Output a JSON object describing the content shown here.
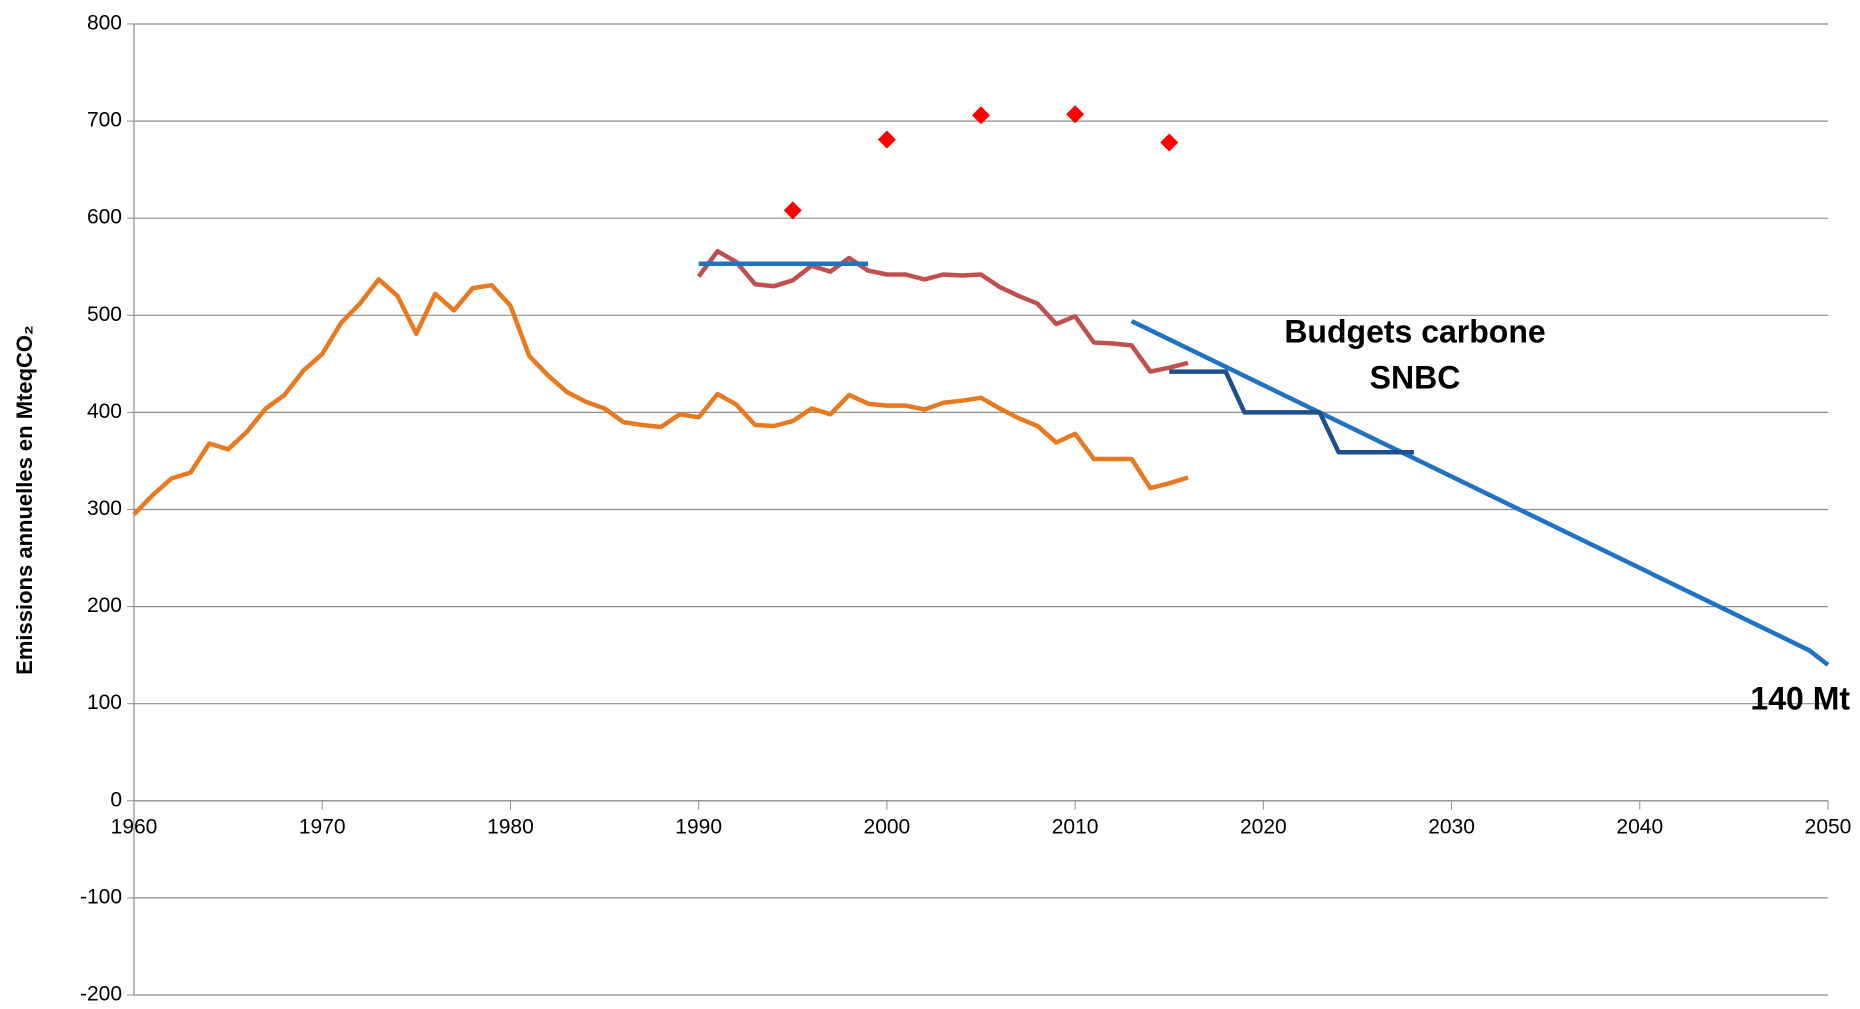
{
  "chart_data": {
    "type": "line",
    "y_label": "Emissions annuelles en MteqCO₂",
    "annotations": [
      "Budgets carbone",
      "SNBC",
      "140 Mt"
    ],
    "xlim": [
      1960,
      2050
    ],
    "xticks": [
      1960,
      1970,
      1980,
      1990,
      2000,
      2010,
      2020,
      2030,
      2040,
      2050
    ],
    "ylim": [
      -200,
      800
    ],
    "yticks": [
      -200,
      -100,
      0,
      100,
      200,
      300,
      400,
      500,
      600,
      700,
      800
    ],
    "grid": true,
    "series": [
      {
        "type": "line",
        "color": "#e8791f",
        "x": [
          1960,
          1961,
          1962,
          1963,
          1964,
          1965,
          1966,
          1967,
          1968,
          1969,
          1970,
          1971,
          1972,
          1973,
          1974,
          1975,
          1976,
          1977,
          1978,
          1979,
          1980,
          1981,
          1982,
          1983,
          1984,
          1985,
          1986,
          1987,
          1988,
          1989,
          1990,
          1991,
          1992,
          1993,
          1994,
          1995,
          1996,
          1997,
          1998,
          1999,
          2000,
          2001,
          2002,
          2003,
          2004,
          2005,
          2006,
          2007,
          2008,
          2009,
          2010,
          2011,
          2012,
          2013,
          2014,
          2015,
          2016
        ],
        "values": [
          295,
          315,
          332,
          338,
          368,
          362,
          380,
          404,
          418,
          443,
          460,
          492,
          512,
          537,
          520,
          481,
          522,
          505,
          528,
          531,
          510,
          458,
          438,
          421,
          411,
          404,
          390,
          387,
          385,
          398,
          395,
          419,
          408,
          387,
          386,
          391,
          404,
          398,
          418,
          409,
          407,
          407,
          403,
          410,
          412,
          415,
          404,
          394,
          386,
          369,
          378,
          352,
          352,
          352,
          322,
          327,
          333
        ]
      },
      {
        "type": "line",
        "color": "#c0504d",
        "x": [
          1990,
          1991,
          1992,
          1993,
          1994,
          1995,
          1996,
          1997,
          1998,
          1999,
          2000,
          2001,
          2002,
          2003,
          2004,
          2005,
          2006,
          2007,
          2008,
          2009,
          2010,
          2011,
          2012,
          2013,
          2014,
          2015,
          2016
        ],
        "values": [
          540,
          566,
          555,
          532,
          530,
          536,
          551,
          545,
          559,
          546,
          542,
          542,
          537,
          542,
          541,
          542,
          529,
          520,
          512,
          491,
          499,
          472,
          471,
          469,
          442,
          446,
          451
        ]
      },
      {
        "type": "line",
        "color": "#1f73c2",
        "x": [
          1990,
          1999
        ],
        "values": [
          553,
          553
        ]
      },
      {
        "type": "line",
        "color": "#1f73c2",
        "x": [
          2013,
          2049,
          2050
        ],
        "values": [
          494,
          155,
          140
        ]
      },
      {
        "type": "line",
        "color": "#1f4e8c",
        "x": [
          2015,
          2018,
          2019,
          2023,
          2024,
          2028
        ],
        "values": [
          442,
          442,
          400,
          400,
          359,
          359
        ]
      },
      {
        "type": "scatter",
        "color": "#ff0000",
        "x": [
          1995,
          2000,
          2005,
          2010,
          2015
        ],
        "values": [
          608,
          681,
          706,
          707,
          678
        ]
      }
    ]
  }
}
